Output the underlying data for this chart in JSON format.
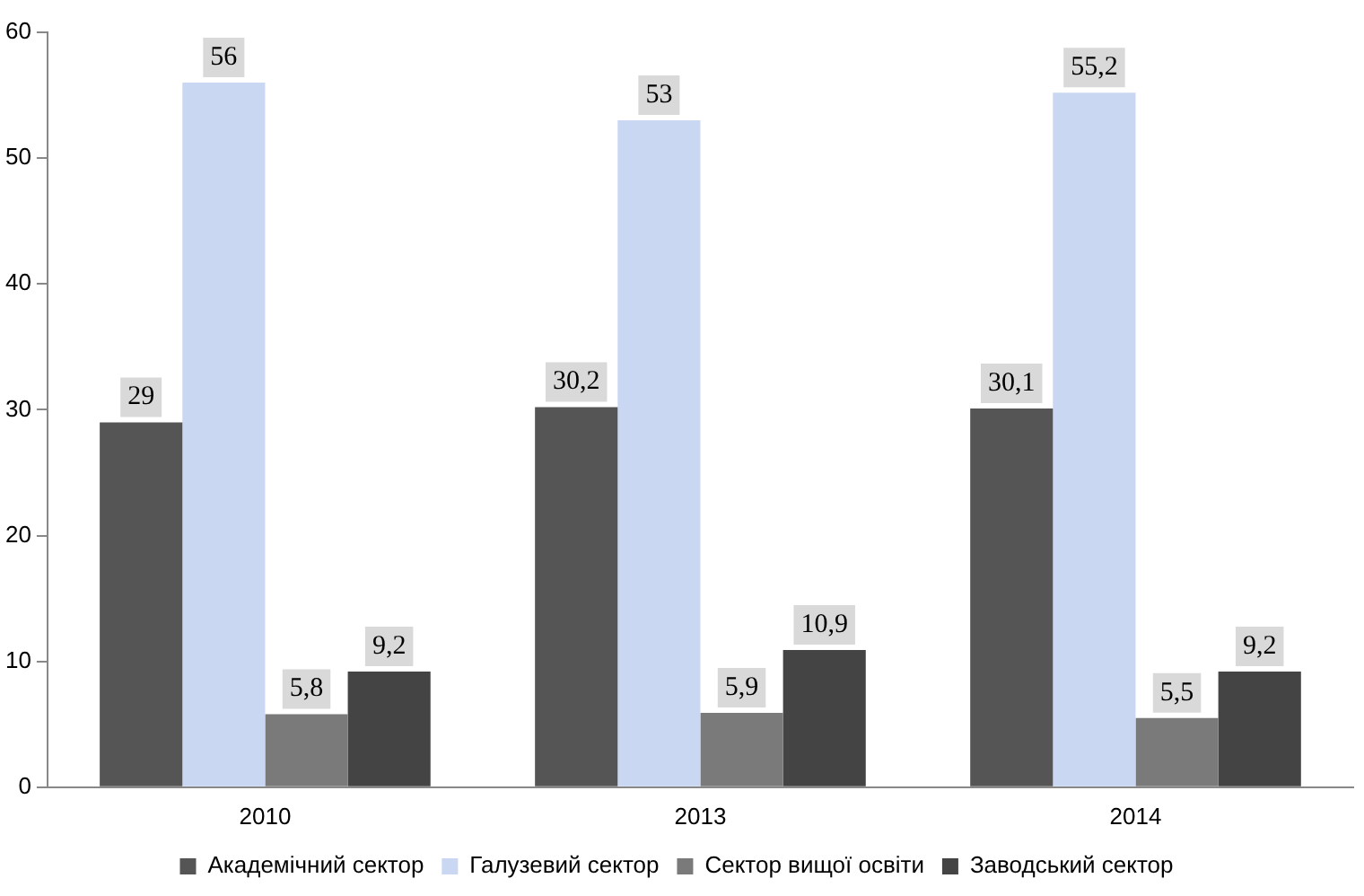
{
  "chart_data": {
    "type": "bar",
    "categories": [
      "2010",
      "2013",
      "2014"
    ],
    "series": [
      {
        "name": "Академічний сектор",
        "color": "#555555",
        "values": [
          29,
          30.2,
          30.1
        ],
        "value_labels": [
          "29",
          "30,2",
          "30,1"
        ]
      },
      {
        "name": "Галузевий сектор",
        "color": "#c9d7f2",
        "values": [
          56,
          53,
          55.2
        ],
        "value_labels": [
          "56",
          "53",
          "55,2"
        ]
      },
      {
        "name": "Сектор вищої освіти",
        "color": "#7a7a7a",
        "values": [
          5.8,
          5.9,
          5.5
        ],
        "value_labels": [
          "5,8",
          "5,9",
          "5,5"
        ]
      },
      {
        "name": "Заводський сектор",
        "color": "#444444",
        "values": [
          9.2,
          10.9,
          9.2
        ],
        "value_labels": [
          "9,2",
          "10,9",
          "9,2"
        ]
      }
    ],
    "ylim": [
      0,
      60
    ],
    "yticks": [
      0,
      10,
      20,
      30,
      40,
      50,
      60
    ],
    "grid": false,
    "legend": "bottom"
  }
}
